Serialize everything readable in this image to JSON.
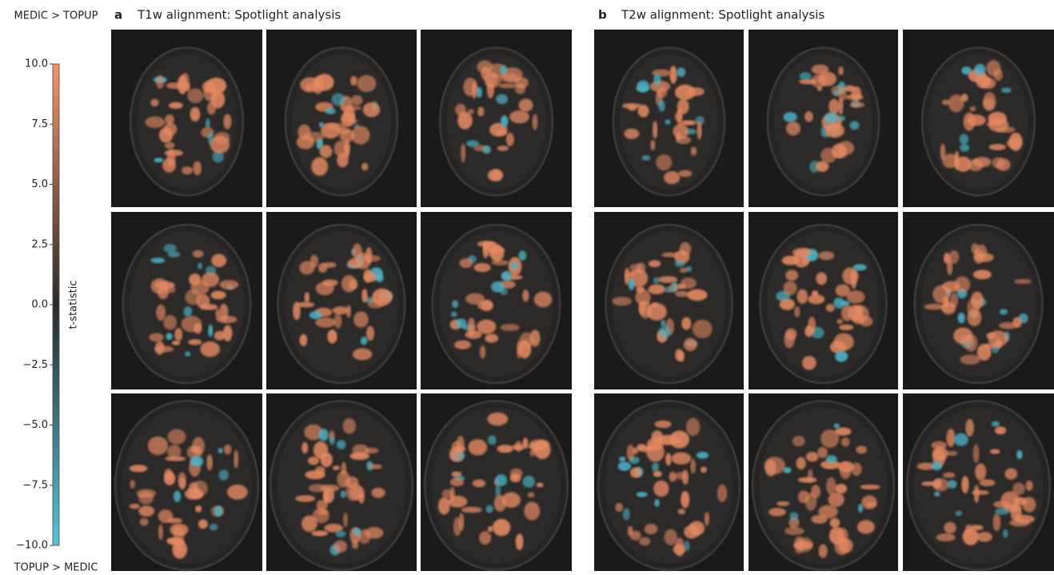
{
  "colorbar": {
    "top_label": "MEDIC > TOPUP",
    "bottom_label": "TOPUP > MEDIC",
    "axis_label": "t-statistic",
    "lim": [
      -10,
      10
    ],
    "ticks": [
      {
        "value": 10,
        "label": "10.0"
      },
      7.5,
      {
        "value": 5,
        "label": "5.0"
      },
      2.5,
      {
        "value": 0,
        "label": "0.0"
      },
      {
        "value": -2.5,
        "label": "−2.5"
      },
      {
        "value": -5,
        "label": "−5.0"
      },
      {
        "value": -7.5,
        "label": "−7.5"
      },
      {
        "value": -10,
        "label": "−10.0"
      }
    ]
  },
  "panels": [
    {
      "letter": "a",
      "title": "T1w alignment: Spotlight analysis"
    },
    {
      "letter": "b",
      "title": "T2w alignment: Spotlight analysis"
    }
  ]
}
